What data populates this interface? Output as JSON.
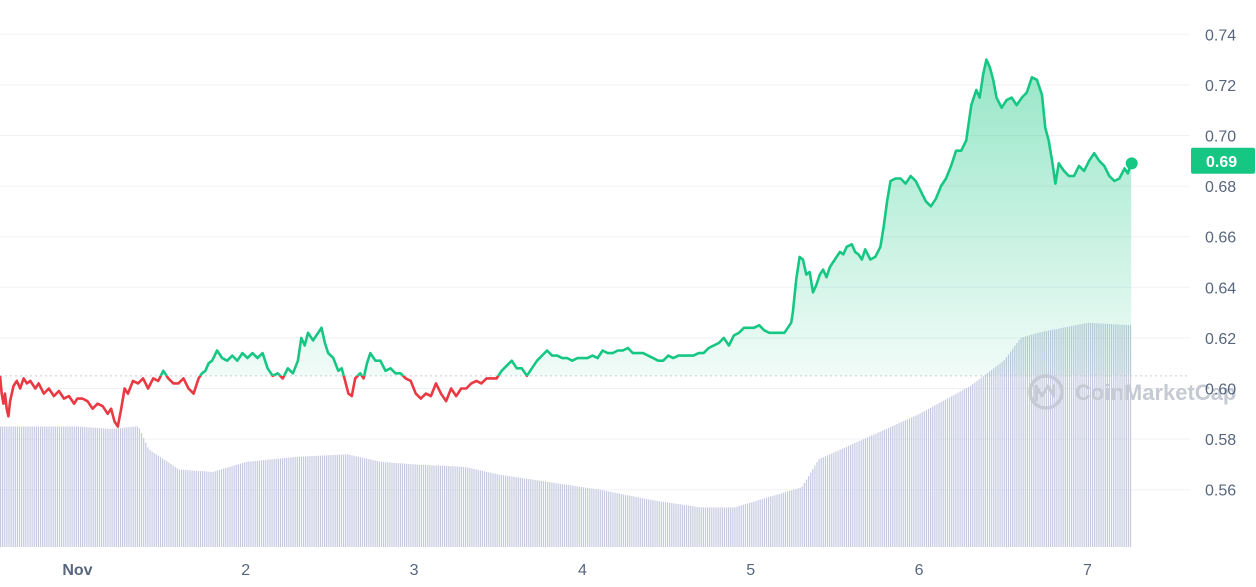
{
  "chart_data": {
    "type": "area",
    "title": "",
    "xlabel": "",
    "ylabel": "",
    "ylim": [
      0.54,
      0.745
    ],
    "y_ticks": [
      "0.74",
      "0.72",
      "0.70",
      "0.68",
      "0.66",
      "0.64",
      "0.62",
      "0.60",
      "0.58",
      "0.56"
    ],
    "x_ticks": [
      {
        "label": "Nov",
        "t": 1.0
      },
      {
        "label": "2",
        "t": 2.0
      },
      {
        "label": "3",
        "t": 3.0
      },
      {
        "label": "4",
        "t": 4.0
      },
      {
        "label": "5",
        "t": 5.0
      },
      {
        "label": "6",
        "t": 6.0
      },
      {
        "label": "7",
        "t": 7.0
      }
    ],
    "xlim": [
      0.54,
      7.55
    ],
    "reference_price": 0.605,
    "current_price_label": "0.69",
    "current_price": 0.69,
    "grid": "horizontal",
    "colors": {
      "up": "#16c784",
      "down": "#ea3943",
      "volume": "#c5c9e0",
      "grid": "#eff2f5",
      "badge": "#16c784"
    },
    "series": [
      {
        "values": [
          [
            0.54,
            0.605
          ],
          [
            0.55,
            0.598
          ],
          [
            0.56,
            0.594
          ],
          [
            0.57,
            0.598
          ],
          [
            0.58,
            0.592
          ],
          [
            0.59,
            0.589
          ],
          [
            0.6,
            0.595
          ],
          [
            0.62,
            0.601
          ],
          [
            0.64,
            0.603
          ],
          [
            0.66,
            0.6
          ],
          [
            0.68,
            0.604
          ],
          [
            0.7,
            0.602
          ],
          [
            0.72,
            0.603
          ],
          [
            0.75,
            0.6
          ],
          [
            0.77,
            0.602
          ],
          [
            0.8,
            0.598
          ],
          [
            0.83,
            0.6
          ],
          [
            0.86,
            0.597
          ],
          [
            0.89,
            0.599
          ],
          [
            0.92,
            0.596
          ],
          [
            0.95,
            0.597
          ],
          [
            0.98,
            0.594
          ],
          [
            1.0,
            0.596
          ],
          [
            1.03,
            0.596
          ],
          [
            1.06,
            0.595
          ],
          [
            1.09,
            0.592
          ],
          [
            1.12,
            0.594
          ],
          [
            1.15,
            0.593
          ],
          [
            1.18,
            0.59
          ],
          [
            1.2,
            0.592
          ],
          [
            1.22,
            0.587
          ],
          [
            1.24,
            0.585
          ],
          [
            1.26,
            0.592
          ],
          [
            1.28,
            0.6
          ],
          [
            1.3,
            0.598
          ],
          [
            1.33,
            0.603
          ],
          [
            1.36,
            0.602
          ],
          [
            1.39,
            0.604
          ],
          [
            1.42,
            0.6
          ],
          [
            1.45,
            0.604
          ],
          [
            1.48,
            0.603
          ],
          [
            1.51,
            0.607
          ],
          [
            1.54,
            0.604
          ],
          [
            1.57,
            0.602
          ],
          [
            1.6,
            0.602
          ],
          [
            1.63,
            0.604
          ],
          [
            1.66,
            0.6
          ],
          [
            1.69,
            0.598
          ],
          [
            1.72,
            0.604
          ],
          [
            1.74,
            0.606
          ],
          [
            1.76,
            0.607
          ],
          [
            1.78,
            0.61
          ],
          [
            1.8,
            0.611
          ],
          [
            1.83,
            0.615
          ],
          [
            1.86,
            0.612
          ],
          [
            1.89,
            0.611
          ],
          [
            1.92,
            0.613
          ],
          [
            1.95,
            0.611
          ],
          [
            1.98,
            0.614
          ],
          [
            2.01,
            0.612
          ],
          [
            2.04,
            0.614
          ],
          [
            2.07,
            0.612
          ],
          [
            2.1,
            0.614
          ],
          [
            2.13,
            0.608
          ],
          [
            2.16,
            0.605
          ],
          [
            2.19,
            0.606
          ],
          [
            2.22,
            0.604
          ],
          [
            2.25,
            0.608
          ],
          [
            2.28,
            0.606
          ],
          [
            2.31,
            0.611
          ],
          [
            2.33,
            0.62
          ],
          [
            2.35,
            0.617
          ],
          [
            2.37,
            0.622
          ],
          [
            2.4,
            0.619
          ],
          [
            2.43,
            0.622
          ],
          [
            2.45,
            0.624
          ],
          [
            2.47,
            0.618
          ],
          [
            2.49,
            0.614
          ],
          [
            2.52,
            0.612
          ],
          [
            2.55,
            0.607
          ],
          [
            2.57,
            0.608
          ],
          [
            2.59,
            0.603
          ],
          [
            2.61,
            0.598
          ],
          [
            2.63,
            0.597
          ],
          [
            2.65,
            0.604
          ],
          [
            2.68,
            0.606
          ],
          [
            2.7,
            0.604
          ],
          [
            2.72,
            0.61
          ],
          [
            2.74,
            0.614
          ],
          [
            2.77,
            0.611
          ],
          [
            2.8,
            0.611
          ],
          [
            2.83,
            0.607
          ],
          [
            2.86,
            0.608
          ],
          [
            2.89,
            0.606
          ],
          [
            2.92,
            0.606
          ],
          [
            2.95,
            0.604
          ],
          [
            2.98,
            0.603
          ],
          [
            3.01,
            0.598
          ],
          [
            3.04,
            0.596
          ],
          [
            3.07,
            0.598
          ],
          [
            3.1,
            0.597
          ],
          [
            3.13,
            0.602
          ],
          [
            3.16,
            0.598
          ],
          [
            3.19,
            0.595
          ],
          [
            3.22,
            0.6
          ],
          [
            3.25,
            0.597
          ],
          [
            3.28,
            0.6
          ],
          [
            3.31,
            0.6
          ],
          [
            3.34,
            0.602
          ],
          [
            3.37,
            0.603
          ],
          [
            3.4,
            0.602
          ],
          [
            3.43,
            0.604
          ],
          [
            3.46,
            0.604
          ],
          [
            3.49,
            0.604
          ],
          [
            3.52,
            0.607
          ],
          [
            3.55,
            0.609
          ],
          [
            3.58,
            0.611
          ],
          [
            3.61,
            0.608
          ],
          [
            3.64,
            0.608
          ],
          [
            3.67,
            0.605
          ],
          [
            3.7,
            0.608
          ],
          [
            3.73,
            0.611
          ],
          [
            3.76,
            0.613
          ],
          [
            3.79,
            0.615
          ],
          [
            3.82,
            0.613
          ],
          [
            3.85,
            0.613
          ],
          [
            3.88,
            0.612
          ],
          [
            3.91,
            0.612
          ],
          [
            3.94,
            0.611
          ],
          [
            3.97,
            0.612
          ],
          [
            4.0,
            0.612
          ],
          [
            4.03,
            0.612
          ],
          [
            4.06,
            0.613
          ],
          [
            4.09,
            0.612
          ],
          [
            4.12,
            0.615
          ],
          [
            4.15,
            0.614
          ],
          [
            4.18,
            0.614
          ],
          [
            4.21,
            0.615
          ],
          [
            4.24,
            0.615
          ],
          [
            4.27,
            0.616
          ],
          [
            4.3,
            0.614
          ],
          [
            4.33,
            0.614
          ],
          [
            4.36,
            0.614
          ],
          [
            4.39,
            0.613
          ],
          [
            4.42,
            0.612
          ],
          [
            4.45,
            0.611
          ],
          [
            4.48,
            0.611
          ],
          [
            4.51,
            0.613
          ],
          [
            4.54,
            0.612
          ],
          [
            4.57,
            0.613
          ],
          [
            4.6,
            0.613
          ],
          [
            4.63,
            0.613
          ],
          [
            4.66,
            0.613
          ],
          [
            4.69,
            0.614
          ],
          [
            4.72,
            0.614
          ],
          [
            4.75,
            0.616
          ],
          [
            4.78,
            0.617
          ],
          [
            4.81,
            0.618
          ],
          [
            4.84,
            0.62
          ],
          [
            4.87,
            0.617
          ],
          [
            4.9,
            0.621
          ],
          [
            4.93,
            0.622
          ],
          [
            4.96,
            0.624
          ],
          [
            4.99,
            0.624
          ],
          [
            5.02,
            0.624
          ],
          [
            5.05,
            0.625
          ],
          [
            5.08,
            0.623
          ],
          [
            5.11,
            0.622
          ],
          [
            5.14,
            0.622
          ],
          [
            5.17,
            0.622
          ],
          [
            5.2,
            0.622
          ],
          [
            5.22,
            0.624
          ],
          [
            5.24,
            0.626
          ],
          [
            5.25,
            0.63
          ],
          [
            5.27,
            0.643
          ],
          [
            5.29,
            0.652
          ],
          [
            5.31,
            0.651
          ],
          [
            5.33,
            0.645
          ],
          [
            5.35,
            0.646
          ],
          [
            5.37,
            0.638
          ],
          [
            5.39,
            0.641
          ],
          [
            5.41,
            0.645
          ],
          [
            5.43,
            0.647
          ],
          [
            5.45,
            0.644
          ],
          [
            5.47,
            0.648
          ],
          [
            5.49,
            0.65
          ],
          [
            5.51,
            0.652
          ],
          [
            5.53,
            0.654
          ],
          [
            5.55,
            0.653
          ],
          [
            5.57,
            0.656
          ],
          [
            5.6,
            0.657
          ],
          [
            5.62,
            0.654
          ],
          [
            5.64,
            0.653
          ],
          [
            5.66,
            0.651
          ],
          [
            5.68,
            0.655
          ],
          [
            5.71,
            0.651
          ],
          [
            5.74,
            0.652
          ],
          [
            5.77,
            0.656
          ],
          [
            5.79,
            0.664
          ],
          [
            5.81,
            0.674
          ],
          [
            5.83,
            0.682
          ],
          [
            5.86,
            0.683
          ],
          [
            5.89,
            0.683
          ],
          [
            5.92,
            0.681
          ],
          [
            5.95,
            0.684
          ],
          [
            5.98,
            0.682
          ],
          [
            6.01,
            0.678
          ],
          [
            6.04,
            0.674
          ],
          [
            6.07,
            0.672
          ],
          [
            6.1,
            0.675
          ],
          [
            6.13,
            0.68
          ],
          [
            6.16,
            0.683
          ],
          [
            6.19,
            0.688
          ],
          [
            6.22,
            0.694
          ],
          [
            6.25,
            0.694
          ],
          [
            6.28,
            0.698
          ],
          [
            6.31,
            0.712
          ],
          [
            6.34,
            0.718
          ],
          [
            6.36,
            0.715
          ],
          [
            6.38,
            0.724
          ],
          [
            6.4,
            0.73
          ],
          [
            6.42,
            0.727
          ],
          [
            6.44,
            0.722
          ],
          [
            6.46,
            0.715
          ],
          [
            6.49,
            0.711
          ],
          [
            6.52,
            0.714
          ],
          [
            6.55,
            0.715
          ],
          [
            6.58,
            0.712
          ],
          [
            6.61,
            0.715
          ],
          [
            6.64,
            0.717
          ],
          [
            6.67,
            0.723
          ],
          [
            6.7,
            0.722
          ],
          [
            6.73,
            0.716
          ],
          [
            6.75,
            0.703
          ],
          [
            6.77,
            0.698
          ],
          [
            6.79,
            0.69
          ],
          [
            6.81,
            0.681
          ],
          [
            6.83,
            0.689
          ],
          [
            6.86,
            0.686
          ],
          [
            6.89,
            0.684
          ],
          [
            6.92,
            0.684
          ],
          [
            6.95,
            0.688
          ],
          [
            6.98,
            0.686
          ],
          [
            7.01,
            0.69
          ],
          [
            7.04,
            0.693
          ],
          [
            7.07,
            0.69
          ],
          [
            7.1,
            0.688
          ],
          [
            7.13,
            0.684
          ],
          [
            7.16,
            0.682
          ],
          [
            7.19,
            0.683
          ],
          [
            7.22,
            0.687
          ],
          [
            7.24,
            0.685
          ],
          [
            7.26,
            0.689
          ]
        ]
      },
      {
        "name": "volume",
        "values": [
          [
            0.54,
            0.585
          ],
          [
            1.0,
            0.585
          ],
          [
            1.2,
            0.584
          ],
          [
            1.34,
            0.585
          ],
          [
            1.36,
            0.585
          ],
          [
            1.42,
            0.576
          ],
          [
            1.6,
            0.568
          ],
          [
            1.8,
            0.567
          ],
          [
            2.0,
            0.571
          ],
          [
            2.3,
            0.573
          ],
          [
            2.6,
            0.574
          ],
          [
            2.8,
            0.571
          ],
          [
            3.0,
            0.57
          ],
          [
            3.3,
            0.569
          ],
          [
            3.5,
            0.566
          ],
          [
            3.8,
            0.563
          ],
          [
            4.1,
            0.56
          ],
          [
            4.4,
            0.556
          ],
          [
            4.7,
            0.553
          ],
          [
            4.9,
            0.553
          ],
          [
            5.1,
            0.557
          ],
          [
            5.3,
            0.561
          ],
          [
            5.4,
            0.572
          ],
          [
            5.7,
            0.581
          ],
          [
            6.0,
            0.59
          ],
          [
            6.3,
            0.601
          ],
          [
            6.5,
            0.611
          ],
          [
            6.6,
            0.62
          ],
          [
            6.7,
            0.622
          ],
          [
            7.0,
            0.626
          ],
          [
            7.26,
            0.625
          ]
        ]
      }
    ]
  },
  "watermark": {
    "text": "CoinMarketCap"
  }
}
